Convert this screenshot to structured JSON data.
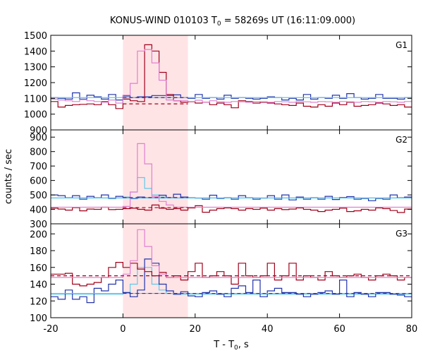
{
  "chart_data": {
    "type": "line",
    "title_main": "KONUS-WIND 010103 T",
    "title_sub": "0",
    "title_rest": " = 58269s UT (16:11:09.000)",
    "xlabel_main": "T - T",
    "xlabel_sub": "0",
    "xlabel_rest": ", s",
    "ylabel": "counts / sec",
    "xlim": [
      -20,
      80
    ],
    "xticks": [
      -20,
      0,
      20,
      40,
      60,
      80
    ],
    "xtick_labels": [
      "-20",
      "0",
      "20",
      "40",
      "60",
      "80"
    ],
    "highlight_interval": [
      0,
      18
    ],
    "bin_edges": [
      -20,
      -18,
      -16,
      -14,
      -12,
      -10,
      -8,
      -6,
      -4,
      -2,
      0,
      2,
      4,
      6,
      8,
      10,
      12,
      14,
      16,
      18,
      20,
      22,
      24,
      26,
      28,
      30,
      32,
      34,
      36,
      38,
      40,
      42,
      44,
      46,
      48,
      50,
      52,
      54,
      56,
      58,
      60,
      62,
      64,
      66,
      68,
      70,
      72,
      74,
      76,
      78,
      80
    ],
    "colors": {
      "dark_red": "#a0001a",
      "blue": "#2233aa",
      "pink": "#e080d0",
      "cyan": "#60c8e8",
      "highlight": "#ffe4e6"
    },
    "panels": [
      {
        "label": "G1",
        "ylim": [
          900,
          1500
        ],
        "yticks": [
          900,
          1000,
          1100,
          1200,
          1300,
          1400,
          1500
        ],
        "ytick_labels": [
          "900",
          "1000",
          "1100",
          "1200",
          "1300",
          "1400",
          "1500"
        ],
        "dark_red": [
          1080,
          1045,
          1055,
          1060,
          1062,
          1065,
          1060,
          1080,
          1060,
          1035,
          1095,
          1085,
          1080,
          1440,
          1400,
          1265,
          1125,
          1085,
          1075,
          1078,
          1070,
          1075,
          1060,
          1070,
          1060,
          1040,
          1085,
          1080,
          1070,
          1075,
          1070,
          1065,
          1060,
          1055,
          1070,
          1050,
          1045,
          1060,
          1050,
          1070,
          1060,
          1075,
          1050,
          1055,
          1060,
          1070,
          1065,
          1055,
          1060,
          1045
        ],
        "blue": [
          1105,
          1100,
          1095,
          1135,
          1095,
          1120,
          1110,
          1095,
          1125,
          1090,
          1115,
          1105,
          1110,
          1110,
          1118,
          1118,
          1118,
          1122,
          1105,
          1100,
          1125,
          1100,
          1105,
          1095,
          1120,
          1100,
          1105,
          1100,
          1095,
          1100,
          1110,
          1105,
          1090,
          1100,
          1090,
          1125,
          1095,
          1105,
          1100,
          1120,
          1100,
          1130,
          1105,
          1095,
          1100,
          1125,
          1100,
          1100,
          1095,
          1105
        ],
        "pink": [
          1095,
          1090,
          1085,
          1080,
          1092,
          1085,
          1080,
          1075,
          1090,
          1070,
          1120,
          1195,
          1400,
          1410,
          1325,
          1215,
          1090,
          1085,
          1085,
          1080,
          1088,
          1075,
          1085,
          1078,
          1075,
          1080,
          1078,
          1075,
          1080,
          1078,
          1075,
          1080,
          1078,
          1075,
          1080,
          1078,
          1075,
          1080,
          1078,
          1075,
          1080,
          1078,
          1075,
          1080,
          1078,
          1075,
          1080,
          1078,
          1075,
          1080
        ],
        "dark_red_bg": {
          "value": 1065,
          "x_start": 0,
          "x_end": 18
        },
        "blue_bg": {
          "value": 1105,
          "x_start": 0,
          "x_end": 18
        },
        "cyan_bg": {
          "value": 1105,
          "x_start": -20,
          "x_end": 80
        }
      },
      {
        "label": "G2",
        "ylim": [
          300,
          950
        ],
        "yticks": [
          300,
          400,
          500,
          600,
          700,
          800,
          900
        ],
        "ytick_labels": [
          "300",
          "400",
          "500",
          "600",
          "700",
          "800",
          "900"
        ],
        "dark_red": [
          408,
          402,
          395,
          412,
          390,
          402,
          400,
          415,
          398,
          400,
          405,
          408,
          400,
          395,
          430,
          408,
          400,
          405,
          395,
          410,
          425,
          380,
          395,
          405,
          410,
          405,
          395,
          405,
          400,
          408,
          395,
          405,
          398,
          402,
          410,
          400,
          395,
          385,
          395,
          400,
          408,
          385,
          390,
          400,
          395,
          410,
          405,
          392,
          378,
          402
        ],
        "blue": [
          500,
          495,
          480,
          495,
          470,
          490,
          480,
          500,
          475,
          490,
          480,
          475,
          485,
          480,
          480,
          498,
          480,
          505,
          485,
          480,
          478,
          470,
          498,
          475,
          480,
          470,
          495,
          480,
          470,
          478,
          495,
          470,
          500,
          465,
          485,
          470,
          480,
          470,
          490,
          468,
          482,
          488,
          470,
          475,
          460,
          475,
          470,
          500,
          480,
          485
        ],
        "pink": [
          415,
          415,
          415,
          415,
          415,
          415,
          415,
          415,
          415,
          415,
          420,
          520,
          855,
          715,
          490,
          455,
          430,
          415,
          415,
          415,
          415,
          415,
          415,
          415,
          415,
          415,
          415,
          415,
          415,
          415,
          415,
          415,
          415,
          415,
          415,
          415,
          415,
          415,
          415,
          415,
          415,
          415,
          415,
          415,
          415,
          415,
          415,
          415,
          415,
          415
        ],
        "cyan": [
          480,
          480,
          480,
          480,
          480,
          480,
          480,
          480,
          480,
          480,
          485,
          520,
          620,
          545,
          500,
          485,
          480,
          480,
          480,
          480,
          480,
          480,
          480,
          480,
          480,
          480,
          480,
          480,
          480,
          480,
          480,
          480,
          480,
          480,
          480,
          480,
          480,
          480,
          480,
          480,
          480,
          480,
          480,
          480,
          480,
          480,
          480,
          480,
          480,
          480
        ],
        "dark_red_bg": {
          "value": 412,
          "x_start": 0,
          "x_end": 18
        },
        "blue_bg": {
          "value": 482,
          "x_start": 0,
          "x_end": 18
        },
        "cyan_bg": {
          "value": 478,
          "x_start": -20,
          "x_end": 80
        }
      },
      {
        "label": "G3",
        "ylim": [
          100,
          212
        ],
        "yticks": [
          100,
          120,
          140,
          160,
          180,
          200
        ],
        "ytick_labels": [
          "100",
          "120",
          "140",
          "160",
          "180",
          "200"
        ],
        "dark_red": [
          152,
          152,
          153,
          140,
          138,
          140,
          142,
          148,
          160,
          166,
          160,
          165,
          158,
          155,
          150,
          154,
          148,
          150,
          145,
          155,
          165,
          148,
          150,
          155,
          150,
          140,
          165,
          150,
          148,
          150,
          165,
          145,
          150,
          165,
          145,
          150,
          148,
          145,
          155,
          150,
          148,
          150,
          152,
          148,
          145,
          150,
          152,
          150,
          145,
          148
        ],
        "blue": [
          125,
          122,
          133,
          122,
          125,
          118,
          135,
          132,
          140,
          145,
          130,
          125,
          133,
          170,
          165,
          140,
          132,
          128,
          131,
          126,
          125,
          130,
          132,
          128,
          125,
          135,
          138,
          130,
          145,
          125,
          132,
          135,
          130,
          130,
          128,
          125,
          128,
          130,
          132,
          128,
          145,
          125,
          130,
          128,
          125,
          130,
          130,
          128,
          127,
          125
        ],
        "pink": [
          148,
          148,
          148,
          148,
          148,
          148,
          148,
          148,
          148,
          148,
          152,
          168,
          205,
          185,
          162,
          152,
          148,
          148,
          148,
          148,
          148,
          148,
          148,
          148,
          148,
          148,
          148,
          148,
          148,
          148,
          148,
          148,
          148,
          148,
          148,
          148,
          148,
          148,
          148,
          148,
          148,
          148,
          148,
          148,
          148,
          148,
          148,
          148,
          148,
          148
        ],
        "cyan": [
          128,
          128,
          128,
          128,
          128,
          128,
          128,
          128,
          128,
          128,
          130,
          140,
          160,
          160,
          140,
          133,
          129,
          128,
          128,
          128,
          128,
          128,
          128,
          128,
          128,
          128,
          128,
          128,
          128,
          128,
          128,
          128,
          128,
          128,
          128,
          128,
          128,
          128,
          128,
          128,
          128,
          128,
          128,
          128,
          128,
          128,
          128,
          128,
          128,
          128
        ],
        "dark_red_bg": {
          "value": 150,
          "x_start": -20,
          "x_end": 80
        },
        "blue_bg": {
          "value": 129,
          "x_start": 0,
          "x_end": 80
        },
        "cyan_bg": {
          "value": 129,
          "x_start": -20,
          "x_end": 80
        }
      }
    ]
  }
}
